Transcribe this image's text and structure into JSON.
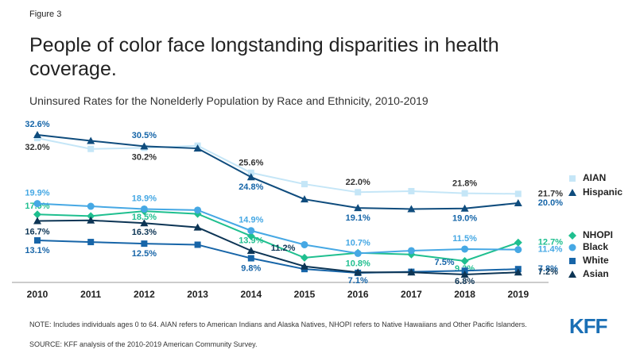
{
  "figure_label": "Figure 3",
  "chart_data": {
    "type": "line",
    "title": "People of color face longstanding disparities in health coverage.",
    "subtitle": "Uninsured Rates for the Nonelderly Population by Race and Ethnicity, 2010-2019",
    "categories": [
      "2010",
      "2011",
      "2012",
      "2013",
      "2014",
      "2015",
      "2016",
      "2017",
      "2018",
      "2019"
    ],
    "series": [
      {
        "name": "AIAN",
        "color": "#c5e6f7",
        "label_color": "#333333",
        "marker": "square",
        "values": [
          32.0,
          30.0,
          30.2,
          30.6,
          25.6,
          23.5,
          22.0,
          22.2,
          21.8,
          21.7
        ],
        "value_labels": [
          "32.0%",
          null,
          "30.2%",
          null,
          "25.6%",
          null,
          "22.0%",
          null,
          "21.8%",
          "21.7%"
        ]
      },
      {
        "name": "Hispanic",
        "color": "#0f4c7d",
        "label_color": "#1565a8",
        "marker": "triangle",
        "values": [
          32.6,
          31.5,
          30.5,
          30.1,
          24.8,
          20.7,
          19.1,
          18.9,
          19.0,
          20.0
        ],
        "value_labels": [
          "32.6%",
          null,
          "30.5%",
          null,
          "24.8%",
          null,
          "19.1%",
          null,
          "19.0%",
          "20.0%"
        ]
      },
      {
        "name": "NHOPI",
        "color": "#1fbf8f",
        "label_color": "#1fbf8f",
        "marker": "diamond",
        "values": [
          17.9,
          17.6,
          18.5,
          18.0,
          13.9,
          9.9,
          10.8,
          10.5,
          9.3,
          12.7
        ],
        "value_labels": [
          "17.9%",
          null,
          "18.5%",
          null,
          "13.9%",
          null,
          "10.8%",
          null,
          "9.3%",
          "12.7%"
        ]
      },
      {
        "name": "Black",
        "color": "#46a8e4",
        "label_color": "#46a8e4",
        "marker": "circle",
        "values": [
          19.9,
          19.4,
          18.9,
          18.7,
          14.9,
          12.3,
          10.7,
          11.2,
          11.5,
          11.4
        ],
        "value_labels": [
          "19.9%",
          null,
          "18.9%",
          null,
          "14.9%",
          null,
          "10.7%",
          null,
          "11.5%",
          "11.4%"
        ]
      },
      {
        "name": "White",
        "color": "#1765a8",
        "label_color": "#1765a8",
        "marker": "square",
        "values": [
          13.1,
          12.8,
          12.5,
          12.3,
          9.8,
          7.8,
          7.1,
          7.3,
          7.5,
          7.8
        ],
        "value_labels": [
          "13.1%",
          null,
          "12.5%",
          null,
          "9.8%",
          null,
          "7.1%",
          null,
          "7.5%",
          "7.8%"
        ]
      },
      {
        "name": "Asian",
        "color": "#0d3555",
        "label_color": "#0d3555",
        "marker": "triangle",
        "values": [
          16.7,
          16.8,
          16.3,
          15.5,
          11.2,
          8.3,
          7.2,
          7.2,
          6.8,
          7.2
        ],
        "value_labels": [
          "16.7%",
          null,
          "16.3%",
          null,
          "11.2%",
          null,
          null,
          null,
          "6.8%",
          "7.2%"
        ]
      }
    ]
  },
  "notes": {
    "note": "NOTE: Includes individuals ages 0 to 64. AIAN refers to American Indians and Alaska Natives, NHOPI refers to Native Hawaiians and Other Pacific Islanders.",
    "source": "SOURCE: KFF analysis of the 2010-2019 American Community Survey."
  },
  "logo": "KFF"
}
